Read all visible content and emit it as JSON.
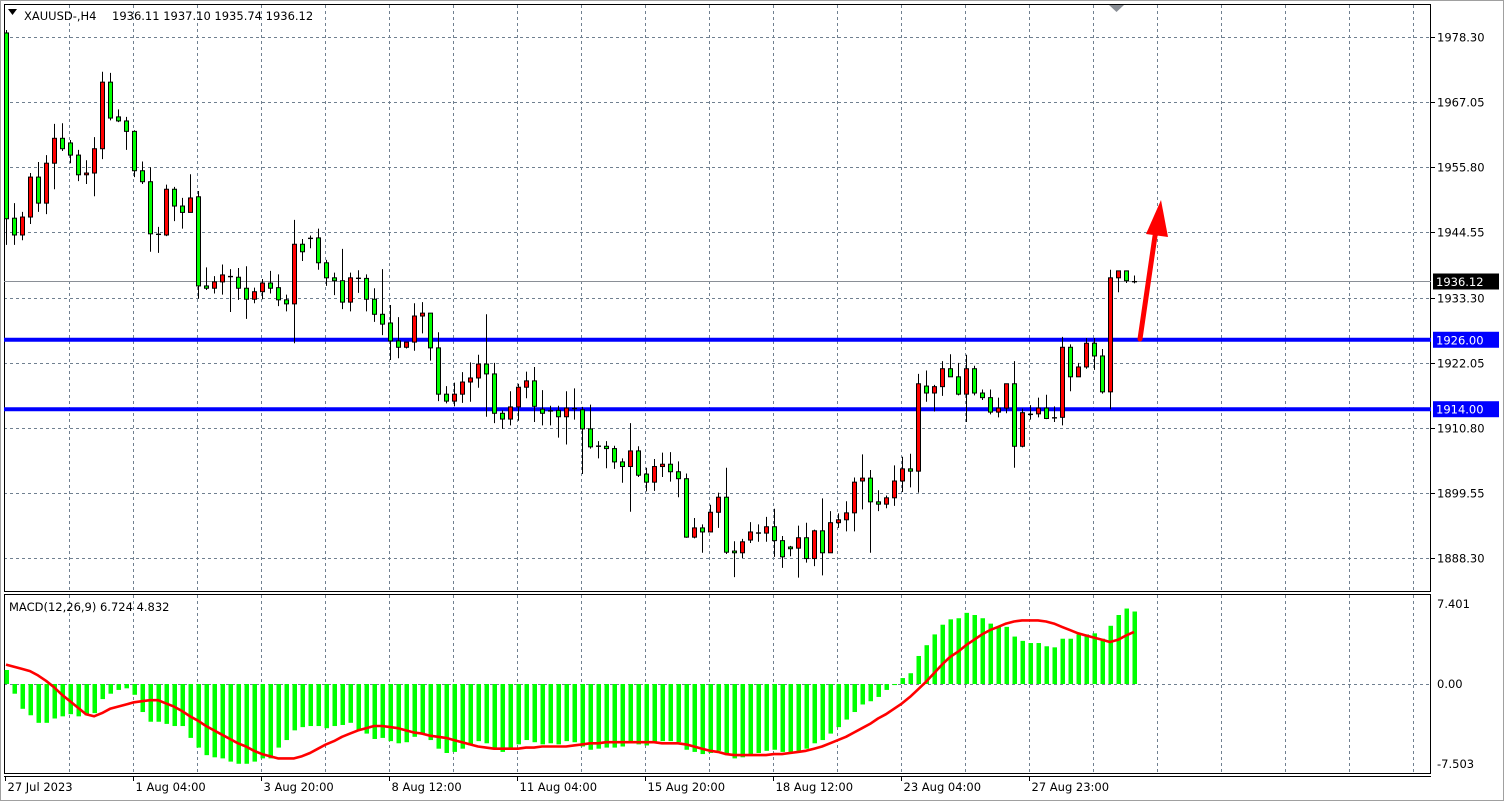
{
  "header": {
    "symbol_label": "XAUUSD-,H4",
    "ohlc_label": "1936.11 1937.10 1935.74 1936.12",
    "menu_icon": "triangle-down-icon"
  },
  "indicator": {
    "label": "MACD(12,26,9) 6.724 4.832",
    "main_value": 6.724,
    "signal_value": 4.832
  },
  "colors": {
    "bull_candle": "#ff0000",
    "bear_candle": "#00ff00",
    "level_line": "#0000ff",
    "histogram": "#00ff00",
    "signal_line": "#ff0000",
    "arrow": "#ff0000",
    "grid": "#708090"
  },
  "chart_data": [
    {
      "type": "candlestick",
      "symbol": "XAUUSD-",
      "timeframe": "H4",
      "y_ticks": [
        "1978.30",
        "1967.05",
        "1955.80",
        "1944.55",
        "1933.30",
        "1922.05",
        "1910.80",
        "1899.55",
        "1888.30"
      ],
      "ylim": [
        1881.9,
        1983.9
      ],
      "x_ticks": [
        "27 Jul 2023",
        "1 Aug 04:00",
        "3 Aug 20:00",
        "8 Aug 12:00",
        "11 Aug 04:00",
        "15 Aug 20:00",
        "18 Aug 12:00",
        "23 Aug 04:00",
        "27 Aug 23:00"
      ],
      "grid": true,
      "current_price": {
        "value": 1936.12,
        "label": "1936.12"
      },
      "levels": [
        {
          "value": 1926.0,
          "label": "1926.00"
        },
        {
          "value": 1914.0,
          "label": "1914.00"
        }
      ],
      "annotation": {
        "type": "arrow",
        "direction": "up",
        "from_price": 1926.0,
        "to_price": 1949.5
      },
      "candles_format": [
        "open",
        "high",
        "low",
        "close"
      ],
      "candles": [
        [
          1979,
          1979.5,
          1942.4,
          1946.9
        ],
        [
          1947,
          1949.6,
          1942.4,
          1944.1
        ],
        [
          1944.1,
          1948.1,
          1943.2,
          1947.2
        ],
        [
          1947.2,
          1954.8,
          1946,
          1954.1
        ],
        [
          1954.1,
          1956.7,
          1948.1,
          1949.6
        ],
        [
          1949.6,
          1957.9,
          1947.7,
          1956.5
        ],
        [
          1956.5,
          1963.3,
          1952,
          1960.8
        ],
        [
          1960.8,
          1963.4,
          1958.6,
          1959
        ],
        [
          1960,
          1960.5,
          1956.5,
          1957.9
        ],
        [
          1957.9,
          1958.8,
          1953.4,
          1954.5
        ],
        [
          1954.5,
          1957,
          1952.9,
          1954.8
        ],
        [
          1954.8,
          1961,
          1950.8,
          1959
        ],
        [
          1959,
          1972.3,
          1957.2,
          1970.5
        ],
        [
          1970.5,
          1972.1,
          1963.9,
          1964.3
        ],
        [
          1964.5,
          1965.8,
          1963.6,
          1963.8
        ],
        [
          1963.8,
          1964.5,
          1958.8,
          1962
        ],
        [
          1962,
          1962.2,
          1954.1,
          1955.2
        ],
        [
          1955.2,
          1956.8,
          1952.9,
          1953.3
        ],
        [
          1953.3,
          1955.8,
          1941.2,
          1944.3
        ],
        [
          1944.3,
          1945.5,
          1941,
          1944.1
        ],
        [
          1944.1,
          1952.8,
          1943.9,
          1952
        ],
        [
          1952,
          1952.4,
          1946.5,
          1949.1
        ],
        [
          1949.1,
          1950.5,
          1945.2,
          1948
        ],
        [
          1948,
          1954.6,
          1948,
          1950.5
        ],
        [
          1950.7,
          1951.7,
          1933.1,
          1935.3
        ],
        [
          1935.3,
          1938.5,
          1934.6,
          1934.9
        ],
        [
          1934.9,
          1937,
          1934,
          1936
        ],
        [
          1936,
          1939,
          1933.8,
          1937.2
        ],
        [
          1937,
          1938.2,
          1930.8,
          1936.8
        ],
        [
          1936.8,
          1938.4,
          1932.9,
          1934.9
        ],
        [
          1934.9,
          1938.7,
          1929.6,
          1933
        ],
        [
          1933,
          1935,
          1932.3,
          1934.3
        ],
        [
          1934.3,
          1936.5,
          1933,
          1935.8
        ],
        [
          1935.8,
          1937.9,
          1934,
          1934.9
        ],
        [
          1935,
          1937.3,
          1931.8,
          1932.9
        ],
        [
          1932.9,
          1933.8,
          1930.9,
          1932.2
        ],
        [
          1932.2,
          1946.7,
          1925.4,
          1942.5
        ],
        [
          1942.5,
          1943.4,
          1939.6,
          1941.2
        ],
        [
          1943.6,
          1944,
          1941.8,
          1943.4
        ],
        [
          1943.6,
          1945.2,
          1938.1,
          1939.3
        ],
        [
          1939.3,
          1939.8,
          1935.3,
          1936.7
        ],
        [
          1936.7,
          1937.6,
          1933.7,
          1936.2
        ],
        [
          1936.2,
          1941.7,
          1931.3,
          1932.5
        ],
        [
          1932.5,
          1937.6,
          1930.9,
          1936.7
        ],
        [
          1936.7,
          1938,
          1934.1,
          1936.6
        ],
        [
          1936.6,
          1937.3,
          1930.9,
          1933
        ],
        [
          1933,
          1934.9,
          1929.1,
          1930.4
        ],
        [
          1930.4,
          1938.2,
          1926.8,
          1928.7
        ],
        [
          1928.9,
          1932,
          1922.5,
          1925.8
        ],
        [
          1925.8,
          1929.9,
          1922.8,
          1924.7
        ],
        [
          1924.7,
          1925.6,
          1924.5,
          1925.6
        ],
        [
          1925.6,
          1932.3,
          1924.1,
          1930.1
        ],
        [
          1930.1,
          1932.5,
          1927.1,
          1930.6
        ],
        [
          1930.6,
          1930.6,
          1922.4,
          1924.6
        ],
        [
          1924.6,
          1927.3,
          1915.4,
          1916.6
        ],
        [
          1916.6,
          1918,
          1915,
          1915.4
        ],
        [
          1915.4,
          1918.6,
          1914.5,
          1916.6
        ],
        [
          1916.6,
          1920.4,
          1915.1,
          1918.7
        ],
        [
          1918.7,
          1922.1,
          1915.3,
          1919.4
        ],
        [
          1919.4,
          1923.4,
          1917.7,
          1921.8
        ],
        [
          1921.8,
          1930.4,
          1912.7,
          1920.1
        ],
        [
          1920.1,
          1922,
          1911.6,
          1913.3
        ],
        [
          1913.3,
          1913.8,
          1910.6,
          1912.3
        ],
        [
          1912.3,
          1917.1,
          1911.2,
          1914.4
        ],
        [
          1914.4,
          1918.4,
          1912,
          1917.8
        ],
        [
          1917.8,
          1920.5,
          1915.9,
          1918.9
        ],
        [
          1918.9,
          1921.3,
          1911.8,
          1914.5
        ],
        [
          1914,
          1917.3,
          1911.2,
          1913.3
        ],
        [
          1913.8,
          1914.6,
          1911.2,
          1913.7
        ],
        [
          1913.8,
          1914.6,
          1909.1,
          1912.7
        ],
        [
          1912.7,
          1917.1,
          1907.9,
          1914.2
        ],
        [
          1914.2,
          1917.6,
          1912.2,
          1914
        ],
        [
          1913.9,
          1914.4,
          1902.8,
          1910.6
        ],
        [
          1910.6,
          1914.8,
          1907.2,
          1907.5
        ],
        [
          1907.7,
          1908.5,
          1905.5,
          1907.6
        ],
        [
          1907.6,
          1908.5,
          1903.8,
          1907.2
        ],
        [
          1907.2,
          1907.7,
          1903.7,
          1904.9
        ],
        [
          1904.9,
          1905.5,
          1901.3,
          1904.1
        ],
        [
          1904.1,
          1911.6,
          1896.3,
          1906.8
        ],
        [
          1906.8,
          1907.6,
          1902.3,
          1902.6
        ],
        [
          1902.8,
          1903.9,
          1899.8,
          1901.4
        ],
        [
          1901.4,
          1905.4,
          1899.9,
          1904.1
        ],
        [
          1904.1,
          1906.5,
          1902.3,
          1904.5
        ],
        [
          1904.5,
          1906.6,
          1901.5,
          1903.2
        ],
        [
          1903.2,
          1905,
          1898.8,
          1902
        ],
        [
          1902,
          1902.9,
          1891.8,
          1891.9
        ],
        [
          1891.9,
          1895.2,
          1891.7,
          1893.5
        ],
        [
          1893.5,
          1894.1,
          1889.2,
          1892.8
        ],
        [
          1892.8,
          1897.5,
          1892.8,
          1896.2
        ],
        [
          1896.2,
          1899.6,
          1893.5,
          1898.8
        ],
        [
          1898.8,
          1903.9,
          1889,
          1889.3
        ],
        [
          1889.5,
          1891.2,
          1885,
          1889.2
        ],
        [
          1889.2,
          1891.6,
          1888.3,
          1891.1
        ],
        [
          1891.4,
          1894.5,
          1890.9,
          1892.8
        ],
        [
          1892.7,
          1894.1,
          1891.1,
          1892.6
        ],
        [
          1892.6,
          1895.4,
          1891.1,
          1893.7
        ],
        [
          1893.7,
          1896.8,
          1888.5,
          1891.3
        ],
        [
          1891.3,
          1892.1,
          1886.6,
          1888.5
        ],
        [
          1890.2,
          1890.4,
          1888.6,
          1889.9
        ],
        [
          1890,
          1893.9,
          1884.9,
          1891.8
        ],
        [
          1891.8,
          1894.4,
          1887.5,
          1888.2
        ],
        [
          1888.2,
          1893.2,
          1886.9,
          1893
        ],
        [
          1893,
          1898.6,
          1885.3,
          1889.2
        ],
        [
          1889.2,
          1896.4,
          1889.2,
          1894.4
        ],
        [
          1894.4,
          1896,
          1893.5,
          1894.9
        ],
        [
          1894.9,
          1898.1,
          1892.9,
          1896.1
        ],
        [
          1896.1,
          1902.2,
          1892.9,
          1901.4
        ],
        [
          1901.6,
          1906.2,
          1896.7,
          1902.1
        ],
        [
          1902.1,
          1903.5,
          1889.2,
          1898
        ],
        [
          1898,
          1900,
          1896.4,
          1897.6
        ],
        [
          1897.6,
          1899.1,
          1896.9,
          1898.7
        ],
        [
          1898.7,
          1904.3,
          1897.3,
          1901.6
        ],
        [
          1901.6,
          1905.8,
          1899.7,
          1903.7
        ],
        [
          1903.7,
          1906.3,
          1900.5,
          1903.3
        ],
        [
          1903.3,
          1920.1,
          1899.6,
          1918.4
        ],
        [
          1918,
          1920.7,
          1915.3,
          1916.8
        ],
        [
          1916.8,
          1918.2,
          1913.6,
          1917.9
        ],
        [
          1917.9,
          1922.3,
          1916.3,
          1921
        ],
        [
          1921,
          1923.5,
          1919.6,
          1919.6
        ],
        [
          1919.6,
          1922,
          1916.4,
          1916.6
        ],
        [
          1916.6,
          1923.4,
          1911.8,
          1921
        ],
        [
          1921,
          1921.5,
          1916.4,
          1916.8
        ],
        [
          1916.8,
          1917.4,
          1915.6,
          1916
        ],
        [
          1916,
          1917.4,
          1913.1,
          1913.5
        ],
        [
          1913.5,
          1916,
          1912.6,
          1914.2
        ],
        [
          1914.2,
          1918.4,
          1913.3,
          1918.4
        ],
        [
          1918.4,
          1922.3,
          1903.9,
          1907.6
        ],
        [
          1907.6,
          1914.1,
          1907.4,
          1913.4
        ],
        [
          1913.1,
          1914.7,
          1912.2,
          1913.2
        ],
        [
          1913.2,
          1916,
          1912.6,
          1914.2
        ],
        [
          1914.2,
          1916.5,
          1912.3,
          1912.4
        ],
        [
          1912.6,
          1914.5,
          1911.8,
          1912.6
        ],
        [
          1912.6,
          1926.5,
          1911.2,
          1924.7
        ],
        [
          1924.7,
          1925.2,
          1917.1,
          1919.6
        ],
        [
          1919.6,
          1922,
          1919.6,
          1921.3
        ],
        [
          1921.3,
          1926.3,
          1921,
          1925.4
        ],
        [
          1925.4,
          1926.3,
          1920.8,
          1923.2
        ],
        [
          1923.2,
          1924.4,
          1916.7,
          1917
        ],
        [
          1917,
          1938.1,
          1914,
          1936.7
        ],
        [
          1936.7,
          1937.9,
          1934.2,
          1937.9
        ],
        [
          1937.9,
          1937.9,
          1935.8,
          1936.2
        ],
        [
          1936.11,
          1937.1,
          1935.74,
          1936.12
        ]
      ]
    },
    {
      "type": "bar+line",
      "title": "MACD(12,26,9) 6.724 4.832",
      "y_ticks": [
        "7.401",
        "0.00",
        "-7.503"
      ],
      "ylim": [
        -7.503,
        7.401
      ],
      "grid": true,
      "histogram": [
        1.3,
        -0.9,
        -2.3,
        -2.9,
        -3.6,
        -3.6,
        -3.2,
        -3.0,
        -2.8,
        -3.0,
        -2.9,
        -2.7,
        -1.4,
        -0.9,
        -0.55,
        -0.4,
        -1.0,
        -2.6,
        -3.5,
        -3.5,
        -3.7,
        -3.9,
        -3.9,
        -5.0,
        -5.9,
        -6.6,
        -6.8,
        -6.9,
        -7.2,
        -7.4,
        -7.4,
        -7.2,
        -6.9,
        -6.9,
        -5.9,
        -5.2,
        -4.3,
        -4.0,
        -3.9,
        -3.9,
        -4.1,
        -3.9,
        -3.8,
        -3.6,
        -4.3,
        -4.6,
        -5.1,
        -5.0,
        -5.3,
        -5.5,
        -5.4,
        -4.9,
        -4.7,
        -5.2,
        -6.0,
        -6.4,
        -6.3,
        -6.0,
        -5.7,
        -5.3,
        -5.5,
        -6.0,
        -6.3,
        -6.1,
        -5.6,
        -5.2,
        -5.4,
        -5.6,
        -5.5,
        -5.6,
        -5.3,
        -5.4,
        -5.8,
        -6.1,
        -6.0,
        -5.9,
        -5.9,
        -5.8,
        -5.4,
        -5.6,
        -5.7,
        -5.5,
        -5.3,
        -5.3,
        -5.4,
        -6.1,
        -6.3,
        -6.5,
        -6.4,
        -6.2,
        -6.6,
        -6.9,
        -6.8,
        -6.6,
        -6.4,
        -6.2,
        -6.1,
        -6.3,
        -6.4,
        -6.2,
        -6.0,
        -5.5,
        -5.2,
        -4.6,
        -4.0,
        -3.3,
        -2.6,
        -1.9,
        -1.6,
        -1.2,
        -0.55,
        -0.1,
        0.55,
        1.0,
        2.6,
        3.6,
        4.6,
        5.5,
        6.0,
        6.1,
        6.6,
        6.4,
        6.1,
        5.6,
        5.3,
        5.3,
        4.4,
        4.0,
        3.8,
        3.8,
        3.5,
        3.4,
        4.2,
        4.2,
        4.6,
        4.6,
        4.7,
        4.2,
        5.4,
        6.4,
        7.0,
        6.724
      ],
      "signal": [
        1.8,
        1.6,
        1.4,
        1.2,
        0.8,
        0.3,
        -0.3,
        -1.0,
        -1.6,
        -2.2,
        -2.8,
        -3.0,
        -2.7,
        -2.3,
        -2.1,
        -1.9,
        -1.7,
        -1.6,
        -1.5,
        -1.5,
        -1.8,
        -2.1,
        -2.5,
        -3.0,
        -3.4,
        -3.9,
        -4.3,
        -4.7,
        -5.1,
        -5.5,
        -5.8,
        -6.2,
        -6.5,
        -6.7,
        -6.9,
        -6.9,
        -6.9,
        -6.7,
        -6.4,
        -6.0,
        -5.6,
        -5.3,
        -4.9,
        -4.6,
        -4.3,
        -4.1,
        -3.9,
        -3.9,
        -4.0,
        -4.1,
        -4.3,
        -4.5,
        -4.6,
        -4.8,
        -4.9,
        -5.0,
        -5.2,
        -5.4,
        -5.6,
        -5.8,
        -5.9,
        -6.0,
        -6.0,
        -6.0,
        -6.0,
        -5.9,
        -5.9,
        -5.8,
        -5.8,
        -5.8,
        -5.8,
        -5.7,
        -5.6,
        -5.5,
        -5.5,
        -5.4,
        -5.4,
        -5.4,
        -5.4,
        -5.4,
        -5.4,
        -5.4,
        -5.5,
        -5.5,
        -5.5,
        -5.6,
        -5.8,
        -6.0,
        -6.2,
        -6.3,
        -6.5,
        -6.6,
        -6.6,
        -6.6,
        -6.6,
        -6.6,
        -6.5,
        -6.5,
        -6.4,
        -6.3,
        -6.2,
        -6.0,
        -5.8,
        -5.5,
        -5.2,
        -4.9,
        -4.5,
        -4.1,
        -3.7,
        -3.2,
        -2.8,
        -2.3,
        -1.8,
        -1.2,
        -0.5,
        0.2,
        1.0,
        1.8,
        2.5,
        3.0,
        3.6,
        4.1,
        4.6,
        5.0,
        5.3,
        5.6,
        5.8,
        5.9,
        5.9,
        5.9,
        5.8,
        5.6,
        5.3,
        5.0,
        4.7,
        4.5,
        4.3,
        4.1,
        3.9,
        4.1,
        4.5,
        4.832
      ]
    }
  ]
}
